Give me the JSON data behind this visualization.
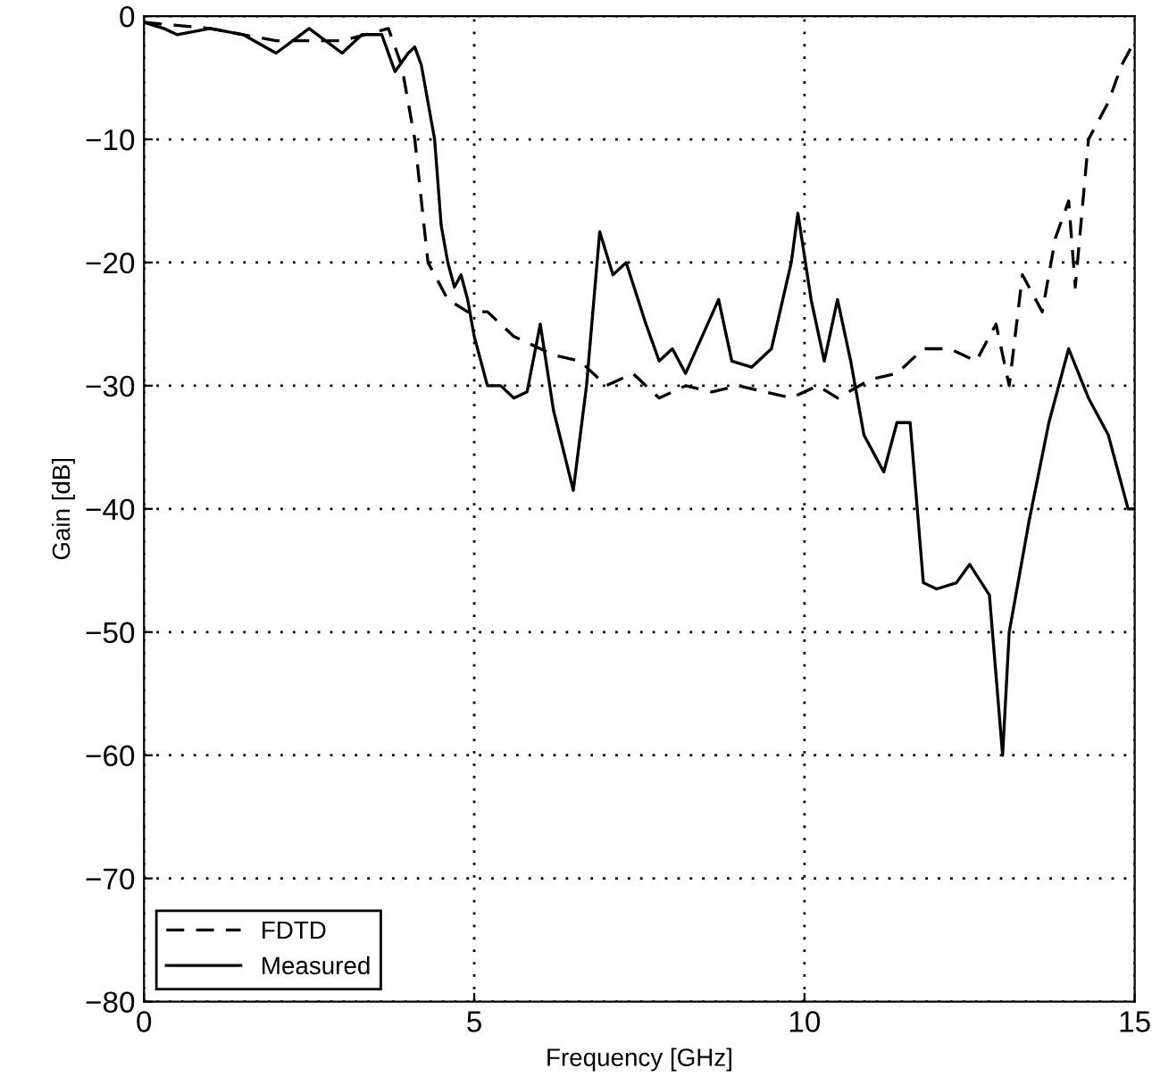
{
  "chart_data": {
    "type": "line",
    "xlabel": "Frequency [GHz]",
    "ylabel": "Gain [dB]",
    "xlim": [
      0,
      15
    ],
    "ylim": [
      -80,
      0
    ],
    "xticks": [
      0,
      5,
      10,
      15
    ],
    "yticks": [
      -80,
      -70,
      -60,
      -50,
      -40,
      -30,
      -20,
      -10,
      0
    ],
    "grid": true,
    "legend": "bottom left",
    "series": [
      {
        "name": "FDTD",
        "color": "#000000",
        "line_style": "dashed",
        "x": [
          0,
          1,
          2,
          3,
          3.7,
          3.9,
          4.1,
          4.3,
          4.6,
          4.9,
          5.2,
          5.6,
          6.2,
          6.6,
          7.0,
          7.4,
          7.8,
          8.2,
          8.6,
          9.0,
          9.4,
          9.8,
          10.2,
          10.5,
          11,
          11.4,
          11.8,
          12.2,
          12.6,
          12.9,
          13.1,
          13.3,
          13.6,
          13.8,
          14.0,
          14.1,
          14.3,
          14.6,
          14.8,
          15
        ],
        "values": [
          -0.5,
          -1,
          -2,
          -2,
          -1,
          -4,
          -10,
          -20,
          -23,
          -24,
          -24,
          -26,
          -27.5,
          -28,
          -30,
          -29,
          -31,
          -30,
          -30.5,
          -30,
          -30.5,
          -31,
          -30,
          -31,
          -29.5,
          -29,
          -27,
          -27,
          -28,
          -25,
          -30,
          -21,
          -24,
          -18,
          -15,
          -22,
          -10,
          -7,
          -4,
          -2
        ]
      },
      {
        "name": "Measured",
        "color": "#000000",
        "line_style": "solid",
        "x": [
          0,
          0.3,
          0.5,
          1,
          1.5,
          2,
          2.5,
          3,
          3.3,
          3.6,
          3.8,
          4.0,
          4.1,
          4.2,
          4.4,
          4.5,
          4.6,
          4.7,
          4.8,
          4.9,
          5.0,
          5.2,
          5.4,
          5.6,
          5.8,
          6.0,
          6.2,
          6.5,
          6.7,
          6.9,
          7.1,
          7.3,
          7.6,
          7.8,
          8.0,
          8.2,
          8.7,
          8.9,
          9.2,
          9.5,
          9.8,
          9.9,
          10.1,
          10.3,
          10.5,
          10.7,
          10.9,
          11.2,
          11.4,
          11.6,
          11.8,
          12.0,
          12.3,
          12.5,
          12.8,
          13.0,
          13.1,
          13.4,
          13.7,
          14.0,
          14.3,
          14.6,
          14.9,
          15
        ],
        "values": [
          -0.5,
          -1,
          -1.5,
          -1,
          -1.5,
          -3,
          -1,
          -3,
          -1.5,
          -1.5,
          -4.5,
          -3,
          -2.5,
          -4,
          -10,
          -17,
          -20,
          -22,
          -21,
          -23,
          -26,
          -30,
          -30,
          -31,
          -30.5,
          -25,
          -32,
          -38.5,
          -30,
          -17.5,
          -21,
          -20,
          -25,
          -28,
          -27,
          -29,
          -23,
          -28,
          -28.5,
          -27,
          -20,
          -16,
          -23,
          -28,
          -23,
          -28,
          -34,
          -37,
          -33,
          -33,
          -46,
          -46.5,
          -46,
          -44.5,
          -47,
          -60,
          -50,
          -41,
          -33,
          -27,
          -31,
          -34,
          -40,
          -40
        ]
      }
    ]
  }
}
